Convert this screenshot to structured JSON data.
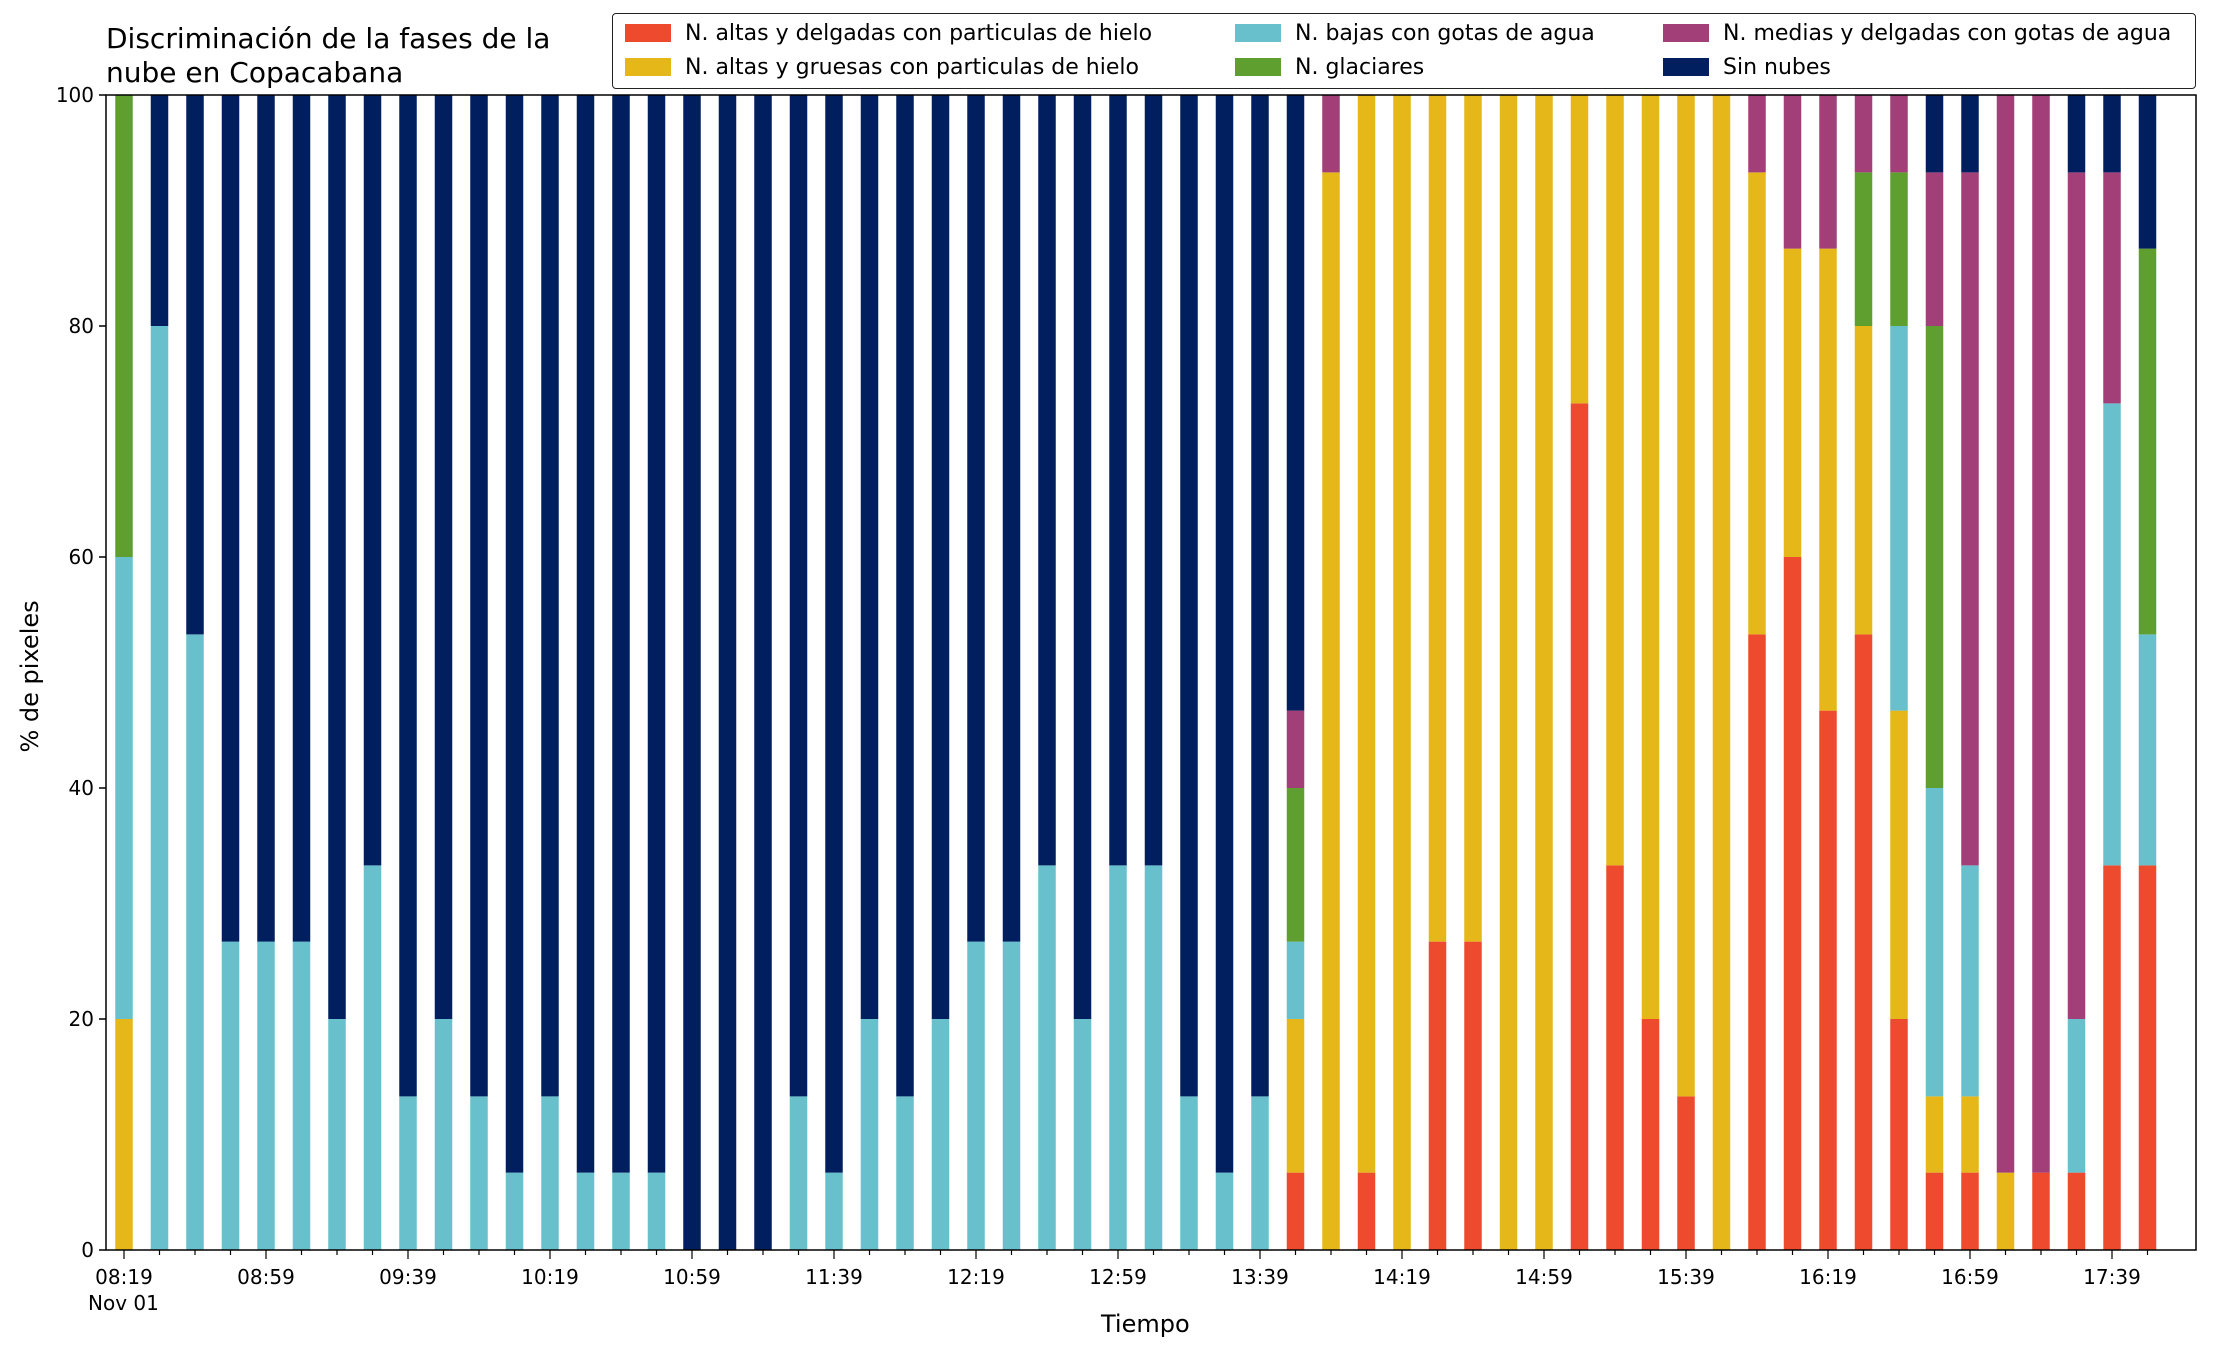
{
  "chart_data": {
    "type": "bar",
    "stacked": true,
    "title": "Discriminación de la fases de la nube en Copacabana",
    "xlabel": "Tiempo",
    "ylabel": "% de pixeles",
    "ylim": [
      0,
      100
    ],
    "yticks": [
      0,
      20,
      40,
      60,
      80,
      100
    ],
    "xtick_labels": [
      "08:19",
      "08:59",
      "09:39",
      "10:19",
      "10:59",
      "11:39",
      "12:19",
      "12:59",
      "13:39",
      "14:19",
      "14:59",
      "15:39",
      "16:19",
      "16:59",
      "17:39"
    ],
    "xtick_sublabel": "Nov 01",
    "legend_position": "top-right",
    "grid": false,
    "categories": [
      "08:19",
      "08:29",
      "08:39",
      "08:49",
      "08:59",
      "09:09",
      "09:19",
      "09:29",
      "09:39",
      "09:49",
      "09:59",
      "10:09",
      "10:19",
      "10:29",
      "10:39",
      "10:49",
      "10:59",
      "11:09",
      "11:19",
      "11:29",
      "11:39",
      "11:49",
      "11:59",
      "12:09",
      "12:19",
      "12:29",
      "12:39",
      "12:49",
      "12:59",
      "13:09",
      "13:19",
      "13:29",
      "13:39",
      "13:49",
      "13:59",
      "14:09",
      "14:19",
      "14:29",
      "14:39",
      "14:49",
      "14:59",
      "15:09",
      "15:19",
      "15:29",
      "15:39",
      "15:49",
      "15:59",
      "16:09",
      "16:19",
      "16:29",
      "16:39",
      "16:49",
      "16:59",
      "17:09",
      "17:19",
      "17:29",
      "17:39",
      "17:49"
    ],
    "series": [
      {
        "name": "N. altas y delgadas con particulas de hielo",
        "color": "#ee4a2d",
        "values": [
          0,
          0,
          0,
          0,
          0,
          0,
          0,
          0,
          0,
          0,
          0,
          0,
          0,
          0,
          0,
          0,
          0,
          0,
          0,
          0,
          0,
          0,
          0,
          0,
          0,
          0,
          0,
          0,
          0,
          0,
          0,
          0,
          0,
          6.7,
          0,
          6.7,
          0,
          26.7,
          26.7,
          0,
          0,
          73.3,
          33.3,
          20,
          13.3,
          0,
          53.3,
          60,
          46.7,
          53.3,
          20,
          6.7,
          6.7,
          0,
          6.7,
          6.7,
          33.3,
          33.3
        ]
      },
      {
        "name": "N. altas y gruesas con particulas de hielo",
        "color": "#e6b719",
        "values": [
          20,
          0,
          0,
          0,
          0,
          0,
          0,
          0,
          0,
          0,
          0,
          0,
          0,
          0,
          0,
          0,
          0,
          0,
          0,
          0,
          0,
          0,
          0,
          0,
          0,
          0,
          0,
          0,
          0,
          0,
          0,
          0,
          0,
          13.3,
          93.3,
          93.3,
          100,
          73.3,
          73.3,
          100,
          100,
          26.7,
          66.7,
          80,
          86.7,
          100,
          40,
          26.7,
          40,
          26.7,
          26.7,
          6.6,
          6.6,
          6.7,
          0,
          0,
          0,
          0
        ]
      },
      {
        "name": "N. bajas con gotas de agua",
        "color": "#67c0cb",
        "values": [
          40,
          80,
          53.3,
          26.7,
          26.7,
          26.7,
          20,
          33.3,
          13.3,
          20,
          13.3,
          6.7,
          13.3,
          6.7,
          6.7,
          6.7,
          0,
          0,
          0,
          13.3,
          6.7,
          20,
          13.3,
          20,
          26.7,
          26.7,
          33.3,
          20,
          33.3,
          33.3,
          13.3,
          6.7,
          13.3,
          6.7,
          0,
          0,
          0,
          0,
          0,
          0,
          0,
          0,
          0,
          0,
          0,
          0,
          0,
          0,
          0,
          0,
          33.3,
          26.7,
          20,
          0,
          0,
          13.3,
          40,
          20
        ]
      },
      {
        "name": "N. glaciares",
        "color": "#5f9f30",
        "values": [
          40,
          0,
          0,
          0,
          0,
          0,
          0,
          0,
          0,
          0,
          0,
          0,
          0,
          0,
          0,
          0,
          0,
          0,
          0,
          0,
          0,
          0,
          0,
          0,
          0,
          0,
          0,
          0,
          0,
          0,
          0,
          0,
          0,
          13.3,
          0,
          0,
          0,
          0,
          0,
          0,
          0,
          0,
          0,
          0,
          0,
          0,
          0,
          0,
          0,
          13.3,
          13.3,
          40,
          0,
          0,
          0,
          0,
          0,
          33.4
        ]
      },
      {
        "name": "N. medias y delgadas con gotas de agua",
        "color": "#a23f78",
        "values": [
          0,
          0,
          0,
          0,
          0,
          0,
          0,
          0,
          0,
          0,
          0,
          0,
          0,
          0,
          0,
          0,
          0,
          0,
          0,
          0,
          0,
          0,
          0,
          0,
          0,
          0,
          0,
          0,
          0,
          0,
          0,
          0,
          0,
          6.7,
          6.7,
          0,
          0,
          0,
          0,
          0,
          0,
          0,
          0,
          0,
          0,
          0,
          6.7,
          13.3,
          13.3,
          6.7,
          6.7,
          13.3,
          60,
          93.3,
          93.3,
          73.3,
          20,
          0
        ]
      },
      {
        "name": "Sin nubes",
        "color": "#011f5e",
        "values": [
          0,
          20,
          46.7,
          73.3,
          73.3,
          73.3,
          80,
          66.7,
          86.7,
          80,
          86.7,
          93.3,
          86.7,
          93.3,
          93.3,
          93.3,
          100,
          100,
          100,
          86.7,
          93.3,
          80,
          86.7,
          80,
          73.3,
          73.3,
          66.7,
          80,
          66.7,
          66.7,
          86.7,
          93.3,
          86.7,
          53.3,
          0,
          0,
          0,
          0,
          0,
          0,
          0,
          0,
          0,
          0,
          0,
          0,
          0,
          0,
          0,
          0,
          0,
          6.7,
          6.7,
          0,
          0,
          6.7,
          6.7,
          13.3
        ]
      }
    ]
  }
}
